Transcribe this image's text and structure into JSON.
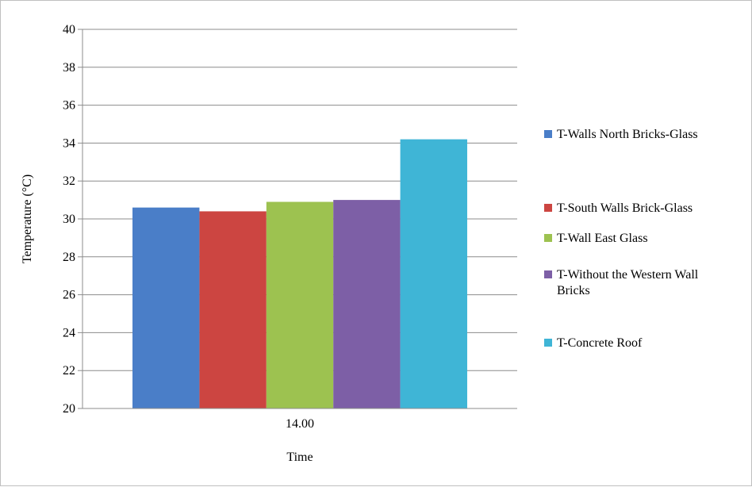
{
  "chart_data": {
    "type": "bar",
    "categories": [
      "14.00"
    ],
    "series": [
      {
        "name": "T-Walls North Bricks-Glass",
        "values": [
          30.6
        ],
        "color": "#4a7ec8"
      },
      {
        "name": "T-South Walls Brick-Glass",
        "values": [
          30.4
        ],
        "color": "#cc4541"
      },
      {
        "name": "T-Wall East Glass",
        "values": [
          30.9
        ],
        "color": "#9dc250"
      },
      {
        "name": "T-Without the Western Wall Bricks",
        "legend_lines": [
          "T-Without the Western Wall",
          "Bricks"
        ],
        "values": [
          31.0
        ],
        "color": "#7d5fa6"
      },
      {
        "name": "T-Concrete Roof",
        "values": [
          34.2
        ],
        "color": "#3fb5d6"
      }
    ],
    "xlabel": "Time",
    "ylabel": "Temperature (°C)",
    "ylim": [
      20,
      40
    ],
    "yticks": [
      "20",
      "22",
      "24",
      "26",
      "28",
      "30",
      "32",
      "34",
      "36",
      "38",
      "40"
    ],
    "grid": true,
    "legend_position": "right"
  }
}
